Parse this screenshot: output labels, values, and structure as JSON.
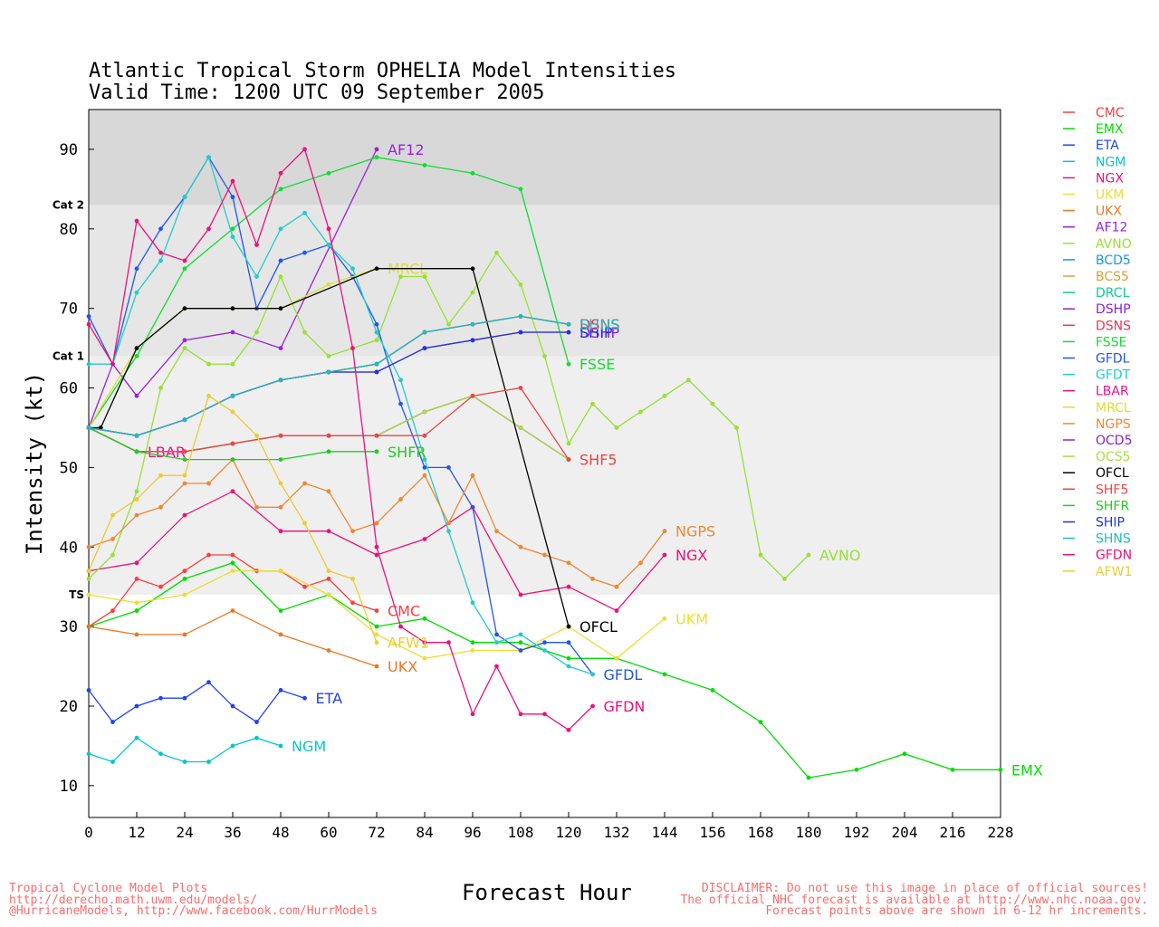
{
  "header": {
    "title_line1": "Atlantic Tropical Storm OPHELIA Model Intensities",
    "title_line2": "Valid Time: 1200 UTC 09 September 2005"
  },
  "footer": {
    "left": [
      "Tropical Cyclone Model Plots",
      "http://derecho.math.uwm.edu/models/",
      "@HurricaneModels, http://www.facebook.com/HurrModels"
    ],
    "right": [
      "DISCLAIMER: Do not use this image in place of official sources!",
      "The official NHC forecast is available at http://www.nhc.noaa.gov.",
      "Forecast points above are shown in 6-12 hr increments."
    ]
  },
  "chart_data": {
    "type": "line",
    "title": "Atlantic Tropical Storm OPHELIA Model Intensities",
    "xlabel": "Forecast Hour",
    "ylabel": "Intensity (kt)",
    "xlim": [
      0,
      228
    ],
    "ylim": [
      6,
      95
    ],
    "xticks": [
      0,
      12,
      24,
      36,
      48,
      60,
      72,
      84,
      96,
      108,
      120,
      132,
      144,
      156,
      168,
      180,
      192,
      204,
      216,
      228
    ],
    "yticks": [
      10,
      20,
      30,
      40,
      50,
      60,
      70,
      80,
      90
    ],
    "grid": false,
    "legend_position": "right",
    "bands": [
      {
        "from": 34,
        "to": 64,
        "color": "#efefef"
      },
      {
        "from": 64,
        "to": 83,
        "color": "#e6e6e6"
      },
      {
        "from": 83,
        "to": 95,
        "color": "#d8d8d8"
      }
    ],
    "category_labels": [
      {
        "label": "TS",
        "y": 34
      },
      {
        "label": "Cat 1",
        "y": 64
      },
      {
        "label": "Cat 2",
        "y": 83
      }
    ],
    "series": [
      {
        "name": "CMC",
        "color": "#ff3c3c",
        "x": [
          0,
          6,
          12,
          18,
          24,
          30,
          36,
          42,
          48,
          54,
          60,
          66,
          72
        ],
        "y": [
          30,
          32,
          36,
          35,
          37,
          39,
          39,
          37,
          37,
          35,
          36,
          33,
          32
        ],
        "label": "CMC"
      },
      {
        "name": "EMX",
        "color": "#00dd00",
        "x": [
          0,
          12,
          24,
          36,
          48,
          60,
          72,
          84,
          96,
          108,
          120,
          132,
          144,
          156,
          168,
          180,
          192,
          204,
          216,
          228
        ],
        "y": [
          30,
          32,
          36,
          38,
          32,
          34,
          30,
          31,
          28,
          28,
          26,
          26,
          24,
          22,
          18,
          11,
          12,
          14,
          12,
          12
        ],
        "label": "EMX"
      },
      {
        "name": "ETA",
        "color": "#2244ee",
        "x": [
          0,
          6,
          12,
          18,
          24,
          30,
          36,
          42,
          48,
          54
        ],
        "y": [
          22,
          18,
          20,
          21,
          21,
          23,
          20,
          18,
          22,
          21
        ],
        "label": "ETA"
      },
      {
        "name": "NGM",
        "color": "#00c8c8",
        "x": [
          0,
          6,
          12,
          18,
          24,
          30,
          36,
          42,
          48
        ],
        "y": [
          14,
          13,
          16,
          14,
          13,
          13,
          15,
          16,
          15
        ],
        "label": "NGM"
      },
      {
        "name": "NGX",
        "color": "#ee1177",
        "x": [
          0,
          12,
          24,
          36,
          48,
          60,
          72,
          84,
          96,
          108,
          120,
          132,
          144
        ],
        "y": [
          37,
          38,
          44,
          47,
          42,
          42,
          39,
          41,
          45,
          34,
          35,
          32,
          39
        ],
        "label": "NGX"
      },
      {
        "name": "UKM",
        "color": "#eedd33",
        "x": [
          0,
          12,
          24,
          36,
          48,
          60,
          72,
          84,
          96,
          108,
          120,
          132,
          144
        ],
        "y": [
          34,
          33,
          34,
          37,
          37,
          34,
          29,
          26,
          27,
          27,
          30,
          26,
          31
        ],
        "label": "UKM"
      },
      {
        "name": "UKX",
        "color": "#ee7722",
        "x": [
          0,
          12,
          24,
          36,
          48,
          60,
          72
        ],
        "y": [
          30,
          29,
          29,
          32,
          29,
          27,
          25
        ],
        "label": "UKX"
      },
      {
        "name": "AF12",
        "color": "#9922dd",
        "x": [
          0,
          6,
          12,
          24,
          36,
          48,
          72
        ],
        "y": [
          55,
          63,
          59,
          66,
          67,
          65,
          90
        ],
        "label": "AF12"
      },
      {
        "name": "AVNO",
        "color": "#99e033",
        "x": [
          0,
          6,
          12,
          18,
          24,
          30,
          36,
          42,
          48,
          54,
          60,
          66,
          72,
          78,
          84,
          90,
          96,
          102,
          108,
          114,
          120,
          126,
          132,
          138,
          144,
          150,
          156,
          162,
          168,
          174,
          180
        ],
        "y": [
          36,
          39,
          47,
          60,
          65,
          63,
          63,
          67,
          74,
          67,
          64,
          65,
          66,
          74,
          74,
          68,
          72,
          77,
          73,
          64,
          53,
          58,
          55,
          57,
          59,
          61,
          58,
          55,
          39,
          36,
          39
        ],
        "label": "AVNO"
      },
      {
        "name": "BCD5",
        "color": "#1199ee",
        "x": [
          0,
          12,
          24,
          36,
          48,
          60,
          72,
          84,
          96,
          108,
          120
        ],
        "y": [
          55,
          54,
          56,
          59,
          61,
          62,
          63,
          67,
          68,
          69,
          68
        ],
        "label": ""
      },
      {
        "name": "BCS5",
        "color": "#d8a23c",
        "x": [
          0,
          12,
          24,
          36,
          48,
          60,
          72,
          84,
          96,
          108,
          120
        ],
        "y": [
          55,
          52,
          52,
          53,
          54,
          54,
          54,
          57,
          59,
          55,
          51
        ],
        "label": ""
      },
      {
        "name": "DRCL",
        "color": "#11cc99",
        "x": [
          0,
          12,
          24,
          36,
          48,
          60,
          72,
          84,
          96,
          108,
          120
        ],
        "y": [
          55,
          54,
          56,
          59,
          61,
          62,
          63,
          67,
          68,
          69,
          68
        ],
        "label": ""
      },
      {
        "name": "DSHP",
        "color": "#8a22dd",
        "x": [
          0,
          12,
          24,
          36,
          48,
          60,
          72,
          84,
          96,
          108,
          120
        ],
        "y": [
          55,
          54,
          56,
          59,
          61,
          62,
          62,
          65,
          66,
          67,
          67
        ],
        "label": "DSHP"
      },
      {
        "name": "DSNS",
        "color": "#ee3355",
        "x": [
          0,
          12,
          24,
          36,
          48,
          60,
          72,
          84,
          96,
          108,
          120
        ],
        "y": [
          55,
          54,
          56,
          59,
          61,
          62,
          63,
          67,
          68,
          69,
          68
        ],
        "label": "DSNS"
      },
      {
        "name": "FSSE",
        "color": "#11dd33",
        "x": [
          0,
          12,
          24,
          36,
          48,
          60,
          72,
          84,
          96,
          108,
          120
        ],
        "y": [
          55,
          64,
          75,
          80,
          85,
          87,
          89,
          88,
          87,
          85,
          63
        ],
        "label": "FSSE"
      },
      {
        "name": "GFDL",
        "color": "#2255ee",
        "x": [
          0,
          6,
          12,
          18,
          24,
          30,
          36,
          42,
          48,
          54,
          60,
          66,
          72,
          78,
          84,
          90,
          96,
          102,
          108,
          114,
          120,
          126
        ],
        "y": [
          69,
          63,
          75,
          80,
          84,
          89,
          84,
          70,
          76,
          77,
          78,
          74,
          68,
          58,
          50,
          50,
          45,
          29,
          27,
          28,
          28,
          24
        ],
        "label": "GFDL"
      },
      {
        "name": "GFDT",
        "color": "#22cccc",
        "x": [
          0,
          6,
          12,
          18,
          24,
          30,
          36,
          42,
          48,
          54,
          60,
          66,
          72,
          78,
          84,
          90,
          96,
          102,
          108,
          114,
          120,
          126
        ],
        "y": [
          63,
          63,
          72,
          76,
          84,
          89,
          79,
          74,
          80,
          82,
          78,
          75,
          67,
          61,
          51,
          42,
          33,
          28,
          29,
          27,
          25,
          24
        ],
        "label": ""
      },
      {
        "name": "LBAR",
        "color": "#ee1188",
        "x": [
          0,
          12
        ],
        "y": [
          55,
          52
        ],
        "label": "LBAR"
      },
      {
        "name": "MRCL",
        "color": "#dddd33",
        "x": [
          0,
          12,
          24,
          36,
          48,
          60,
          72
        ],
        "y": [
          55,
          65,
          70,
          70,
          70,
          73,
          75
        ],
        "label": "MRCL"
      },
      {
        "name": "NGPS",
        "color": "#ee8833",
        "x": [
          0,
          6,
          12,
          18,
          24,
          30,
          36,
          42,
          48,
          54,
          60,
          66,
          72,
          78,
          84,
          90,
          96,
          102,
          108,
          114,
          120,
          126,
          132,
          138,
          144
        ],
        "y": [
          40,
          41,
          44,
          45,
          48,
          48,
          51,
          45,
          45,
          48,
          47,
          42,
          43,
          46,
          49,
          43,
          49,
          42,
          40,
          39,
          38,
          36,
          35,
          38,
          42
        ],
        "label": "NGPS"
      },
      {
        "name": "OCD5",
        "color": "#8822cc",
        "x": [
          0,
          12,
          24,
          36,
          48,
          60,
          72,
          84,
          96,
          108,
          120
        ],
        "y": [
          55,
          52,
          52,
          53,
          54,
          54,
          54,
          57,
          59,
          55,
          51
        ],
        "label": ""
      },
      {
        "name": "OCS5",
        "color": "#aadd44",
        "x": [
          0,
          12,
          24,
          36,
          48,
          60,
          72,
          84,
          96,
          108,
          120
        ],
        "y": [
          55,
          52,
          52,
          53,
          54,
          54,
          54,
          57,
          59,
          55,
          51
        ],
        "label": ""
      },
      {
        "name": "OFCL",
        "color": "#000000",
        "x": [
          0,
          3,
          12,
          24,
          36,
          48,
          72,
          96,
          120
        ],
        "y": [
          55,
          55,
          65,
          70,
          70,
          70,
          75,
          75,
          30
        ],
        "label": "OFCL"
      },
      {
        "name": "SHF5",
        "color": "#ee4444",
        "x": [
          0,
          12,
          24,
          36,
          48,
          60,
          72,
          84,
          96,
          108,
          120
        ],
        "y": [
          55,
          52,
          52,
          53,
          54,
          54,
          54,
          54,
          59,
          60,
          51
        ],
        "label": "SHF5"
      },
      {
        "name": "SHFR",
        "color": "#22cc22",
        "x": [
          0,
          12,
          24,
          36,
          48,
          60,
          72
        ],
        "y": [
          55,
          52,
          51,
          51,
          51,
          52,
          52
        ],
        "label": "SHFR"
      },
      {
        "name": "SHIP",
        "color": "#2233dd",
        "x": [
          0,
          12,
          24,
          36,
          48,
          60,
          72,
          84,
          96,
          108,
          120
        ],
        "y": [
          55,
          54,
          56,
          59,
          61,
          62,
          62,
          65,
          66,
          67,
          67
        ],
        "label": "SHIP"
      },
      {
        "name": "SHNS",
        "color": "#22bbbb",
        "x": [
          0,
          12,
          24,
          36,
          48,
          60,
          72,
          84,
          96,
          108,
          120
        ],
        "y": [
          55,
          54,
          56,
          59,
          61,
          62,
          63,
          67,
          68,
          69,
          68
        ],
        "label": "SHNS"
      },
      {
        "name": "GFDN",
        "color": "#ee1177",
        "x": [
          0,
          6,
          12,
          18,
          24,
          30,
          36,
          42,
          48,
          54,
          60,
          66,
          72,
          78,
          84,
          90,
          96,
          102,
          108,
          114,
          120,
          126
        ],
        "y": [
          68,
          63,
          81,
          77,
          76,
          80,
          86,
          78,
          87,
          90,
          80,
          65,
          40,
          30,
          28,
          28,
          19,
          25,
          19,
          19,
          17,
          20
        ],
        "label": "GFDN"
      },
      {
        "name": "AFW1",
        "color": "#eecc33",
        "x": [
          0,
          6,
          12,
          18,
          24,
          30,
          36,
          42,
          48,
          54,
          60,
          66,
          72
        ],
        "y": [
          37,
          44,
          46,
          49,
          49,
          59,
          57,
          54,
          48,
          43,
          37,
          36,
          28
        ],
        "label": "AFW1"
      }
    ]
  }
}
